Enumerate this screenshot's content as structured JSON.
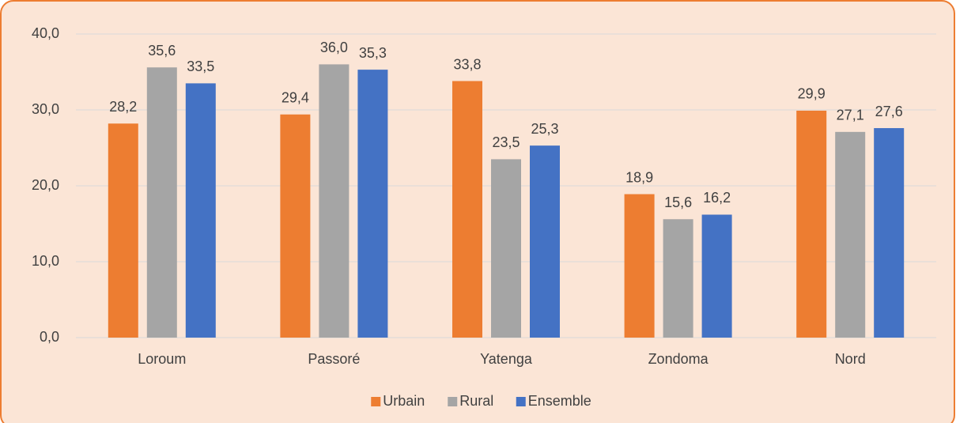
{
  "chart_data": {
    "type": "bar",
    "categories": [
      "Loroum",
      "Passoré",
      "Yatenga",
      "Zondoma",
      "Nord"
    ],
    "series": [
      {
        "name": "Urbain",
        "color": "#ed7d31",
        "values": [
          28.2,
          29.4,
          33.8,
          18.9,
          29.9
        ],
        "value_labels": [
          "28,2",
          "29,4",
          "33,8",
          "18,9",
          "29,9"
        ]
      },
      {
        "name": "Rural",
        "color": "#a5a5a5",
        "values": [
          35.6,
          36.0,
          23.5,
          15.6,
          27.1
        ],
        "value_labels": [
          "35,6",
          "36,0",
          "23,5",
          "15,6",
          "27,1"
        ]
      },
      {
        "name": "Ensemble",
        "color": "#4472c4",
        "values": [
          33.5,
          35.3,
          25.3,
          16.2,
          27.6
        ],
        "value_labels": [
          "33,5",
          "35,3",
          "25,3",
          "16,2",
          "27,6"
        ]
      }
    ],
    "ylim": [
      0,
      40
    ],
    "yticks": [
      {
        "value": 0,
        "label": "0,0"
      },
      {
        "value": 10,
        "label": "10,0"
      },
      {
        "value": 20,
        "label": "20,0"
      },
      {
        "value": 30,
        "label": "30,0"
      },
      {
        "value": 40,
        "label": "40,0"
      }
    ],
    "grid": true,
    "legend": "bottom"
  }
}
